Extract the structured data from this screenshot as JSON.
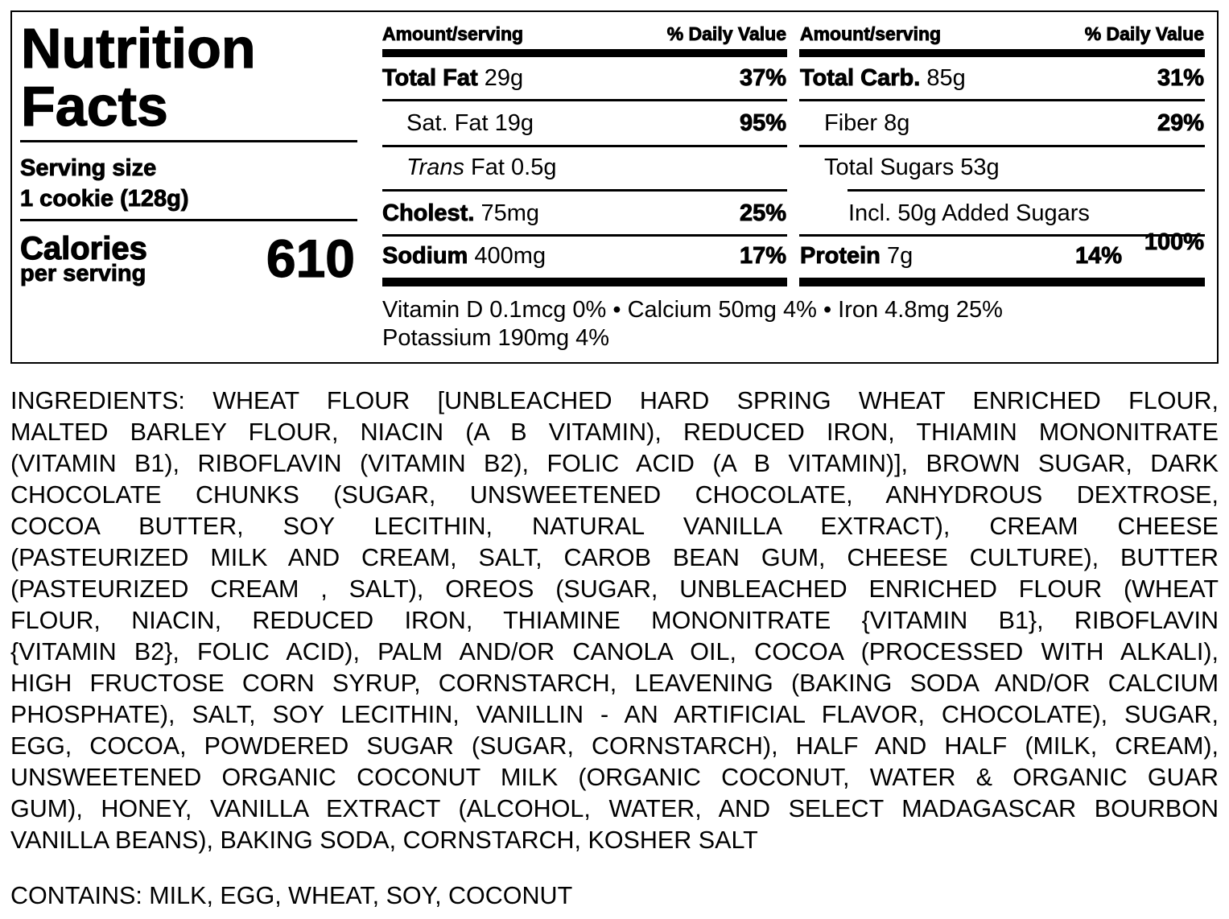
{
  "label": {
    "title_line1": "Nutrition",
    "title_line2": "Facts",
    "serving_size_label": "Serving size",
    "serving_size_value": "1 cookie (128g)",
    "calories_label": "Calories",
    "calories_sub": "per serving",
    "calories_value": "610",
    "left_table": {
      "header_amount": "Amount/serving",
      "header_dv": "% Daily Value",
      "rows": [
        {
          "name": "Total Fat",
          "amount": "29g",
          "dv": "37%"
        },
        {
          "name": "Sat. Fat",
          "amount": "19g",
          "dv": "95%"
        },
        {
          "name": "Trans",
          "amount": "Fat 0.5g",
          "dv": ""
        },
        {
          "name": "Cholest.",
          "amount": "75mg",
          "dv": "25%"
        },
        {
          "name": "Sodium",
          "amount": "400mg",
          "dv": "17%"
        }
      ]
    },
    "right_table": {
      "header_amount": "Amount/serving",
      "header_dv": "% Daily Value",
      "rows": [
        {
          "name": "Total Carb.",
          "amount": "85g",
          "dv": "31%"
        },
        {
          "name": "Fiber",
          "amount": "8g",
          "dv": "29%"
        },
        {
          "name": "Total Sugars",
          "amount": "53g",
          "dv": ""
        },
        {
          "name": "Incl. 50g Added Sugars",
          "amount": "",
          "dv": ""
        },
        {
          "name": "Protein",
          "amount": "7g",
          "dv": "14%",
          "extra": "100%"
        }
      ]
    },
    "vitamins_line1": "Vitamin D 0.1mcg 0% • Calcium 50mg 4% • Iron 4.8mg 25%",
    "vitamins_line2": "Potassium 190mg 4%"
  },
  "ingredients_lines": [
    "INGREDIENTS: WHEAT FLOUR [UNBLEACHED HARD SPRING WHEAT ENRICHED FLOUR,",
    "MALTED BARLEY FLOUR, NIACIN (A B VITAMIN), REDUCED IRON, THIAMIN MONONITRATE",
    "(VITAMIN B1), RIBOFLAVIN (VITAMIN B2), FOLIC ACID (A B VITAMIN)], BROWN SUGAR, DARK",
    "CHOCOLATE CHUNKS (SUGAR, UNSWEETENED CHOCOLATE, ANHYDROUS DEXTROSE,",
    "COCOA BUTTER, SOY LECITHIN, NATURAL VANILLA EXTRACT), CREAM CHEESE",
    "(PASTEURIZED MILK AND CREAM, SALT, CAROB BEAN GUM, CHEESE CULTURE), BUTTER",
    "(PASTEURIZED CREAM , SALT), OREOS (SUGAR, UNBLEACHED ENRICHED FLOUR (WHEAT",
    "FLOUR, NIACIN, REDUCED IRON, THIAMINE MONONITRATE {VITAMIN B1}, RIBOFLAVIN",
    "{VITAMIN B2}, FOLIC ACID), PALM AND/OR CANOLA OIL, COCOA (PROCESSED WITH ALKALI),",
    "HIGH FRUCTOSE CORN SYRUP, CORNSTARCH, LEAVENING (BAKING SODA AND/OR CALCIUM",
    "PHOSPHATE), SALT, SOY LECITHIN, VANILLIN - AN ARTIFICIAL FLAVOR, CHOCOLATE), SUGAR,",
    "EGG, COCOA, POWDERED SUGAR (SUGAR, CORNSTARCH), HALF AND HALF (MILK, CREAM),",
    "UNSWEETENED ORGANIC COCONUT MILK (ORGANIC COCONUT, WATER & ORGANIC GUAR",
    "GUM), HONEY, VANILLA EXTRACT (ALCOHOL, WATER, AND SELECT MADAGASCAR BOURBON",
    "VANILLA BEANS), BAKING SODA, CORNSTARCH, KOSHER SALT"
  ],
  "contains": "CONTAINS: MILK, EGG, WHEAT, SOY, COCONUT"
}
